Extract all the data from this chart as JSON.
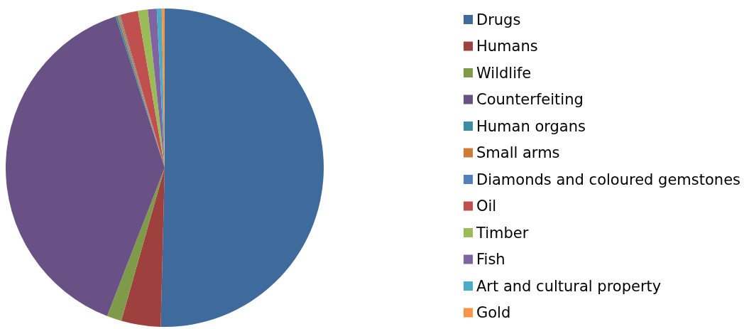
{
  "chart_data": {
    "type": "pie",
    "categories": [
      "Drugs",
      "Humans",
      "Wildlife",
      "Counterfeiting",
      "Human organs",
      "Small arms",
      "Diamonds and coloured gemstones",
      "Oil",
      "Timber",
      "Fish",
      "Art and cultural property",
      "Gold"
    ],
    "values": [
      50.4,
      4.0,
      1.5,
      39.1,
      0.2,
      0.2,
      0.1,
      1.8,
      1.0,
      0.9,
      0.5,
      0.3
    ],
    "colors": [
      "#3f6a9c",
      "#9e413e",
      "#7f9a48",
      "#695185",
      "#3c8da3",
      "#cc7b38",
      "#4f81bd",
      "#c0504d",
      "#9bbb59",
      "#8064a2",
      "#4bacc6",
      "#f79646"
    ],
    "legend": "right"
  }
}
